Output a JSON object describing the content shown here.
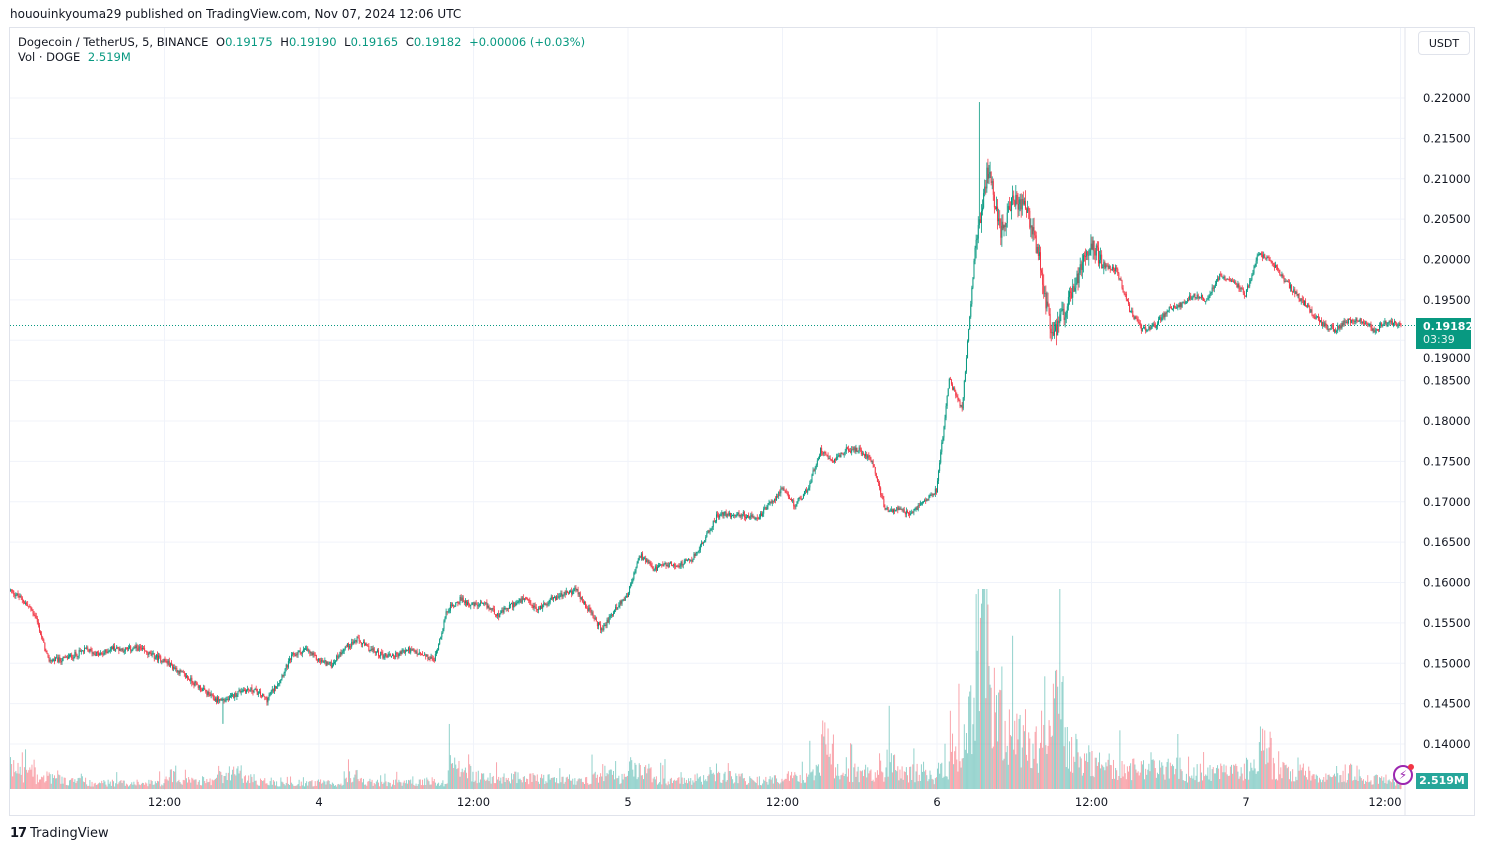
{
  "published": "hououinkyouma29 published on TradingView.com, Nov 07, 2024 12:06 UTC",
  "legend": {
    "symbol": "Dogecoin / TetherUS, 5, BINANCE",
    "o_label": "O",
    "o": "0.19175",
    "h_label": "H",
    "h": "0.19190",
    "l_label": "L",
    "l": "0.19165",
    "c_label": "C",
    "c": "0.19182",
    "change": "+0.00006 (+0.03%)",
    "vol_label": "Vol · DOGE",
    "vol": "2.519M"
  },
  "currency_button": "USDT",
  "last_price": {
    "price": "0.19182",
    "countdown": "03:39"
  },
  "volume_tag": "2.519M",
  "footer": {
    "brand": "TradingView",
    "logo_text": "17"
  },
  "colors": {
    "up": "#089981",
    "down": "#f23645",
    "vol_up": "#26a69a",
    "alert": "#9c27b0"
  },
  "icons": {
    "alert": "lightning-alert-icon",
    "logo": "tradingview-logo-icon"
  },
  "chart_data": {
    "type": "candlestick",
    "symbol": "DOGEUSDT",
    "interval": "5",
    "start": "2024-11-03T00:00Z",
    "approx_hourly_close": [
      0.1591,
      0.1579,
      0.156,
      0.1504,
      0.1504,
      0.151,
      0.1517,
      0.151,
      0.1519,
      0.1517,
      0.1519,
      0.151,
      0.1504,
      0.1492,
      0.148,
      0.1467,
      0.1455,
      0.1455,
      0.1467,
      0.1467,
      0.1455,
      0.148,
      0.151,
      0.1517,
      0.1504,
      0.1498,
      0.1519,
      0.1529,
      0.1517,
      0.151,
      0.151,
      0.1517,
      0.151,
      0.1504,
      0.1566,
      0.1579,
      0.1572,
      0.1572,
      0.156,
      0.1572,
      0.1579,
      0.1566,
      0.1579,
      0.1585,
      0.1591,
      0.1566,
      0.1541,
      0.1566,
      0.1585,
      0.1634,
      0.1616,
      0.1622,
      0.1622,
      0.1628,
      0.1653,
      0.1684,
      0.1684,
      0.1684,
      0.1678,
      0.1696,
      0.1715,
      0.1696,
      0.1715,
      0.1764,
      0.1752,
      0.1764,
      0.1764,
      0.1752,
      0.169,
      0.169,
      0.1684,
      0.1702,
      0.1715,
      0.1851,
      0.1814,
      0.2012,
      0.2111,
      0.2037,
      0.2074,
      0.2061,
      0.1999,
      0.19,
      0.1938,
      0.1975,
      0.2024,
      0.1993,
      0.1987,
      0.1938,
      0.1913,
      0.1919,
      0.1938,
      0.1944,
      0.1956,
      0.195,
      0.1981,
      0.1975,
      0.1956,
      0.2006,
      0.1999,
      0.1975,
      0.1956,
      0.1938,
      0.1919,
      0.1913,
      0.1925,
      0.1925,
      0.1913,
      0.1923,
      0.1918
    ],
    "approx_hourly_volume_M": [
      10,
      8,
      6,
      6,
      4,
      4,
      3,
      3,
      3,
      3,
      3,
      3,
      8,
      5,
      4,
      4,
      6,
      8,
      5,
      4,
      3,
      4,
      3,
      3,
      3,
      3,
      6,
      4,
      3,
      3,
      3,
      3,
      4,
      3,
      12,
      8,
      6,
      5,
      5,
      6,
      5,
      5,
      4,
      5,
      4,
      6,
      8,
      6,
      10,
      8,
      5,
      4,
      4,
      5,
      8,
      6,
      5,
      4,
      4,
      5,
      6,
      5,
      8,
      25,
      10,
      8,
      8,
      6,
      14,
      8,
      8,
      6,
      10,
      20,
      35,
      90,
      40,
      30,
      25,
      20,
      25,
      40,
      20,
      15,
      12,
      12,
      10,
      10,
      12,
      10,
      10,
      8,
      8,
      8,
      8,
      8,
      10,
      20,
      10,
      8,
      8,
      6,
      5,
      6,
      8,
      5,
      5,
      4,
      2.5
    ],
    "notable": {
      "high": 0.2195,
      "low": 0.1425
    },
    "yaxis": {
      "ticks": [
        "0.14000",
        "0.14500",
        "0.15000",
        "0.15500",
        "0.16000",
        "0.16500",
        "0.17000",
        "0.17500",
        "0.18000",
        "0.18500",
        "0.19000",
        "0.19500",
        "0.20000",
        "0.20500",
        "0.21000",
        "0.21500",
        "0.22000"
      ],
      "range": [
        0.14,
        0.22
      ],
      "unit": "USDT"
    },
    "xaxis": {
      "ticks": [
        {
          "label": "12:00",
          "hour": 12
        },
        {
          "label": "4",
          "hour": 24
        },
        {
          "label": "12:00",
          "hour": 36
        },
        {
          "label": "5",
          "hour": 48
        },
        {
          "label": "12:00",
          "hour": 60
        },
        {
          "label": "6",
          "hour": 72
        },
        {
          "label": "12:00",
          "hour": 84
        },
        {
          "label": "7",
          "hour": 96
        },
        {
          "label": "12:00",
          "hour": 108
        }
      ]
    },
    "grid": true,
    "price_line": 0.19182
  }
}
